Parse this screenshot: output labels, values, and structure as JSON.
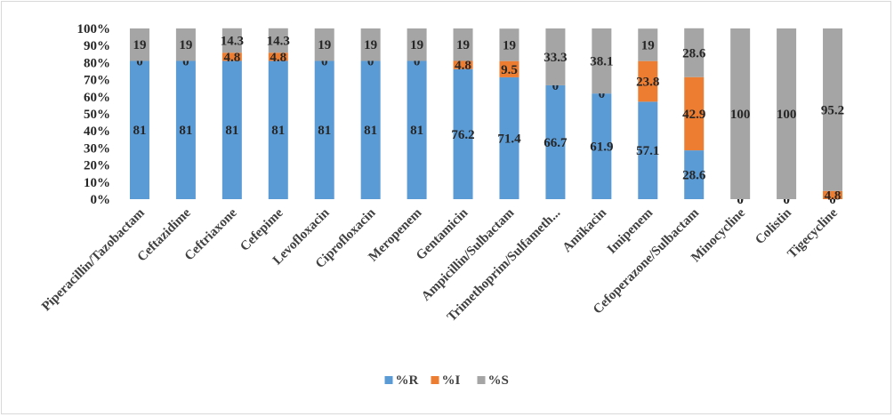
{
  "chart_data": {
    "type": "bar",
    "stacked": true,
    "percent_axis": true,
    "categories": [
      "Piperacillin/Tazobactam",
      "Ceftazidime",
      "Ceftriaxone",
      "Cefepime",
      "Levofloxacin",
      "Ciprofloxacin",
      "Meropenem",
      "Gentamicin",
      "Ampicillin/Sulbactam",
      "Trimethoprim/Sulfameth...",
      "Amikacin",
      "Imipenem",
      "Cefoperazone/Sulbactam",
      "Minocycline",
      "Colistin",
      "Tigecycline"
    ],
    "series": [
      {
        "name": "%R",
        "color": "#5b9bd5",
        "values": [
          81,
          81,
          81,
          81,
          81,
          81,
          81,
          76.2,
          71.4,
          66.7,
          61.9,
          57.1,
          28.6,
          0,
          0,
          0
        ]
      },
      {
        "name": "%I",
        "color": "#ed7d31",
        "values": [
          0,
          0,
          4.8,
          4.8,
          0,
          0,
          0,
          4.8,
          9.5,
          0,
          0,
          23.8,
          42.9,
          0,
          0,
          4.8
        ]
      },
      {
        "name": "%S",
        "color": "#a5a5a5",
        "values": [
          19,
          19,
          14.3,
          14.3,
          19,
          19,
          19,
          19,
          19,
          33.3,
          38.1,
          19,
          28.6,
          100,
          100,
          95.2
        ]
      }
    ],
    "ylim": [
      0,
      100
    ],
    "yticks": [
      "0%",
      "10%",
      "20%",
      "30%",
      "40%",
      "50%",
      "60%",
      "70%",
      "80%",
      "90%",
      "100%"
    ],
    "grid": false,
    "legend": "bottom",
    "title": "",
    "xlabel": "",
    "ylabel": ""
  }
}
